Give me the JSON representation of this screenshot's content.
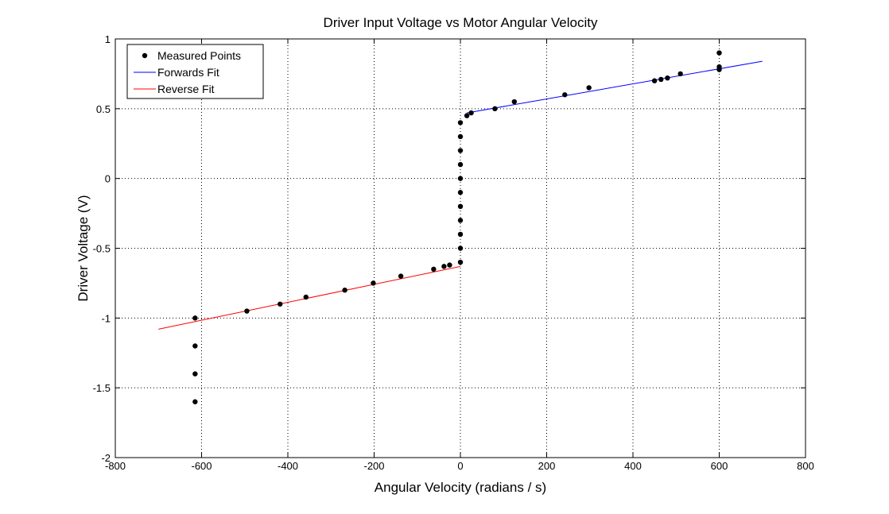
{
  "chart_data": {
    "type": "scatter",
    "title": "Driver Input Voltage vs Motor Angular Velocity",
    "xlabel": "Angular Velocity (radians / s)",
    "ylabel": "Driver Voltage (V)",
    "xlim": [
      -800,
      800
    ],
    "ylim": [
      -2,
      1
    ],
    "xticks": [
      -800,
      -600,
      -400,
      -200,
      0,
      200,
      400,
      600,
      800
    ],
    "yticks": [
      -2,
      -1.5,
      -1,
      -0.5,
      0,
      0.5,
      1
    ],
    "xtick_labels": [
      "-800",
      "-600",
      "-400",
      "-200",
      "0",
      "200",
      "400",
      "600",
      "800"
    ],
    "ytick_labels": [
      "-2",
      "-1.5",
      "-1",
      "-0.5",
      "0",
      "0.5",
      "1"
    ],
    "grid": true,
    "legend_position": "top-left",
    "series": [
      {
        "name": "Measured Points",
        "kind": "points",
        "color": "#000000",
        "points": [
          [
            -615,
            -1.6
          ],
          [
            -615,
            -1.4
          ],
          [
            -615,
            -1.2
          ],
          [
            -615,
            -1.0
          ],
          [
            -495,
            -0.95
          ],
          [
            -418,
            -0.9
          ],
          [
            -358,
            -0.85
          ],
          [
            -268,
            -0.8
          ],
          [
            -202,
            -0.75
          ],
          [
            -138,
            -0.7
          ],
          [
            -62,
            -0.65
          ],
          [
            -38,
            -0.63
          ],
          [
            -25,
            -0.62
          ],
          [
            0,
            -0.6
          ],
          [
            0,
            -0.5
          ],
          [
            0,
            -0.4
          ],
          [
            0,
            -0.3
          ],
          [
            0,
            -0.2
          ],
          [
            0,
            -0.1
          ],
          [
            0,
            0.0
          ],
          [
            0,
            0.1
          ],
          [
            0,
            0.2
          ],
          [
            0,
            0.3
          ],
          [
            0,
            0.4
          ],
          [
            15,
            0.45
          ],
          [
            25,
            0.47
          ],
          [
            80,
            0.5
          ],
          [
            125,
            0.55
          ],
          [
            242,
            0.6
          ],
          [
            298,
            0.65
          ],
          [
            450,
            0.7
          ],
          [
            465,
            0.71
          ],
          [
            480,
            0.72
          ],
          [
            510,
            0.75
          ],
          [
            600,
            0.78
          ],
          [
            600,
            0.8
          ],
          [
            600,
            0.9
          ]
        ]
      },
      {
        "name": "Forwards Fit",
        "kind": "line",
        "color": "#0000ff",
        "points": [
          [
            15,
            0.47
          ],
          [
            700,
            0.84
          ]
        ]
      },
      {
        "name": "Reverse Fit",
        "kind": "line",
        "color": "#ff0000",
        "points": [
          [
            -700,
            -1.08
          ],
          [
            0,
            -0.63
          ]
        ]
      }
    ]
  }
}
